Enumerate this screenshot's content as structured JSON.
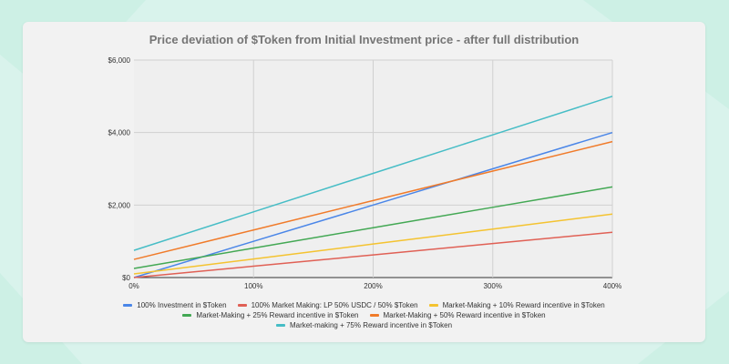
{
  "chart_data": {
    "type": "line",
    "title": "Price deviation of $Token from Initial Investment price - after full distribution",
    "x": [
      0,
      100,
      200,
      300,
      400
    ],
    "x_tick_labels": [
      "0%",
      "100%",
      "200%",
      "300%",
      "400%"
    ],
    "xlim": [
      0,
      400
    ],
    "ylim": [
      0,
      6000
    ],
    "y_ticks": [
      0,
      2000,
      4000,
      6000
    ],
    "y_tick_labels": [
      "$0",
      "$2,000",
      "$4,000",
      "$6,000"
    ],
    "xlabel": "",
    "ylabel": "",
    "grid": true,
    "legend_position": "bottom",
    "series": [
      {
        "name": "100% Investment in $Token",
        "color": "#4a86e8",
        "values": [
          0,
          1000,
          2000,
          3000,
          4000
        ]
      },
      {
        "name": "100% Market Making: LP 50% USDC / 50% $Token",
        "color": "#e06055",
        "values": [
          0,
          312.5,
          625,
          937.5,
          1250
        ]
      },
      {
        "name": "Market-Making + 10% Reward incentive in $Token",
        "color": "#f4c330",
        "values": [
          100,
          512.5,
          925,
          1337.5,
          1750
        ]
      },
      {
        "name": "Market-Making + 25% Reward incentive in $Token",
        "color": "#43a854",
        "values": [
          250,
          812.5,
          1375,
          1937.5,
          2500
        ]
      },
      {
        "name": "Market-Making + 50% Reward incentive in $Token",
        "color": "#f07b2a",
        "values": [
          500,
          1312.5,
          2125,
          2937.5,
          3750
        ]
      },
      {
        "name": "Market-making + 75% Reward incentive in $Token",
        "color": "#46bdc6",
        "values": [
          750,
          1812.5,
          2875,
          3937.5,
          5000
        ]
      }
    ],
    "legend_rows": [
      [
        0,
        1,
        2
      ],
      [
        3,
        4
      ],
      [
        5
      ]
    ]
  }
}
